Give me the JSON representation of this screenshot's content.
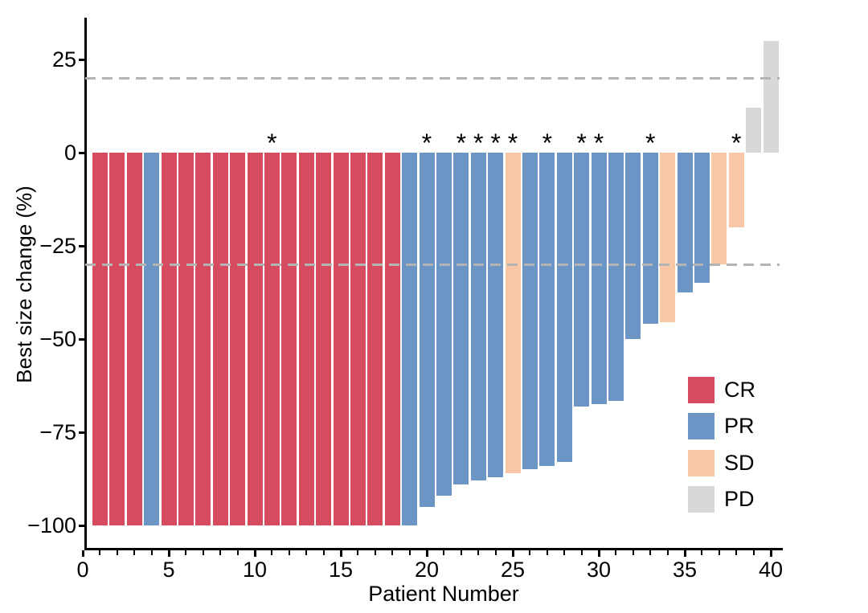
{
  "chart_data": {
    "type": "bar",
    "subtype": "waterfall",
    "title": "",
    "xlabel": "Patient Number",
    "ylabel": "Best size change (%)",
    "x_ticks": [
      0,
      5,
      10,
      15,
      20,
      25,
      30,
      35,
      40
    ],
    "x_minor_tick_step": 1,
    "y_ticks": [
      25,
      0,
      -25,
      -50,
      -75,
      -100
    ],
    "y_tick_labels": [
      "25",
      "0",
      "−25",
      "−50",
      "−75",
      "−100"
    ],
    "xlim": [
      0,
      40.6
    ],
    "ylim": [
      -106,
      36
    ],
    "grid": false,
    "reference_lines": [
      {
        "name": "progression-threshold",
        "value": 20,
        "style": "dashed",
        "color": "#b4b4b4"
      },
      {
        "name": "response-threshold",
        "value": -30,
        "style": "dashed",
        "color": "#b4b4b4"
      }
    ],
    "legend": {
      "position": "inside-right-lower",
      "entries": [
        {
          "label": "CR",
          "color": "#d64b60"
        },
        {
          "label": "PR",
          "color": "#6a95c5"
        },
        {
          "label": "SD",
          "color": "#f7c7a6"
        },
        {
          "label": "PD",
          "color": "#d8d8d8"
        }
      ]
    },
    "annotation_glyph": "*",
    "starred_patients": [
      11,
      20,
      22,
      23,
      24,
      25,
      27,
      29,
      30,
      33,
      38
    ],
    "bars": [
      {
        "patient": 1,
        "value": -100,
        "response": "CR",
        "star": false
      },
      {
        "patient": 2,
        "value": -100,
        "response": "CR",
        "star": false
      },
      {
        "patient": 3,
        "value": -100,
        "response": "CR",
        "star": false
      },
      {
        "patient": 4,
        "value": -100,
        "response": "PR",
        "star": false
      },
      {
        "patient": 5,
        "value": -100,
        "response": "CR",
        "star": false
      },
      {
        "patient": 6,
        "value": -100,
        "response": "CR",
        "star": false
      },
      {
        "patient": 7,
        "value": -100,
        "response": "CR",
        "star": false
      },
      {
        "patient": 8,
        "value": -100,
        "response": "CR",
        "star": false
      },
      {
        "patient": 9,
        "value": -100,
        "response": "CR",
        "star": false
      },
      {
        "patient": 10,
        "value": -100,
        "response": "CR",
        "star": false
      },
      {
        "patient": 11,
        "value": -100,
        "response": "CR",
        "star": true
      },
      {
        "patient": 12,
        "value": -100,
        "response": "CR",
        "star": false
      },
      {
        "patient": 13,
        "value": -100,
        "response": "CR",
        "star": false
      },
      {
        "patient": 14,
        "value": -100,
        "response": "CR",
        "star": false
      },
      {
        "patient": 15,
        "value": -100,
        "response": "CR",
        "star": false
      },
      {
        "patient": 16,
        "value": -100,
        "response": "CR",
        "star": false
      },
      {
        "patient": 17,
        "value": -100,
        "response": "CR",
        "star": false
      },
      {
        "patient": 18,
        "value": -100,
        "response": "CR",
        "star": false
      },
      {
        "patient": 19,
        "value": -100,
        "response": "PR",
        "star": false
      },
      {
        "patient": 20,
        "value": -95,
        "response": "PR",
        "star": true
      },
      {
        "patient": 21,
        "value": -92,
        "response": "PR",
        "star": false
      },
      {
        "patient": 22,
        "value": -89,
        "response": "PR",
        "star": true
      },
      {
        "patient": 23,
        "value": -88,
        "response": "PR",
        "star": true
      },
      {
        "patient": 24,
        "value": -87,
        "response": "PR",
        "star": true
      },
      {
        "patient": 25,
        "value": -86,
        "response": "SD",
        "star": true
      },
      {
        "patient": 26,
        "value": -85,
        "response": "PR",
        "star": false
      },
      {
        "patient": 27,
        "value": -84,
        "response": "PR",
        "star": true
      },
      {
        "patient": 28,
        "value": -83,
        "response": "PR",
        "star": false
      },
      {
        "patient": 29,
        "value": -68,
        "response": "PR",
        "star": true
      },
      {
        "patient": 30,
        "value": -67.5,
        "response": "PR",
        "star": true
      },
      {
        "patient": 31,
        "value": -66.5,
        "response": "PR",
        "star": false
      },
      {
        "patient": 32,
        "value": -50,
        "response": "PR",
        "star": false
      },
      {
        "patient": 33,
        "value": -46,
        "response": "PR",
        "star": true
      },
      {
        "patient": 34,
        "value": -45.5,
        "response": "SD",
        "star": false
      },
      {
        "patient": 35,
        "value": -37.5,
        "response": "PR",
        "star": false
      },
      {
        "patient": 36,
        "value": -35,
        "response": "PR",
        "star": false
      },
      {
        "patient": 37,
        "value": -30,
        "response": "SD",
        "star": false
      },
      {
        "patient": 38,
        "value": -20,
        "response": "SD",
        "star": true
      },
      {
        "patient": 39,
        "value": 12,
        "response": "PD",
        "star": false
      },
      {
        "patient": 40,
        "value": 30,
        "response": "PD",
        "star": false
      }
    ]
  }
}
